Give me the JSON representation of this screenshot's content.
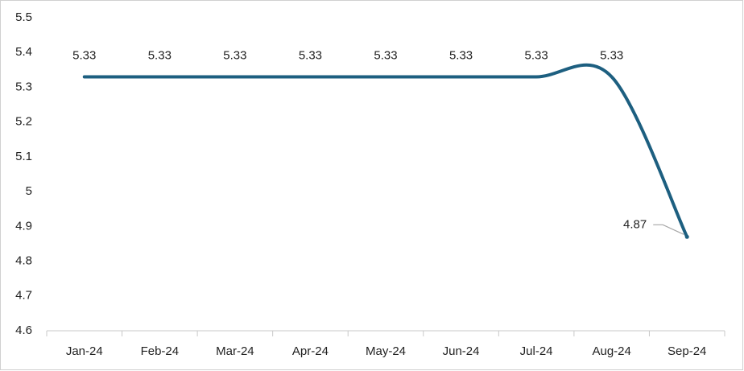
{
  "chart_data": {
    "type": "line",
    "categories": [
      "Jan-24",
      "Feb-24",
      "Mar-24",
      "Apr-24",
      "May-24",
      "Jun-24",
      "Jul-24",
      "Aug-24",
      "Sep-24"
    ],
    "values": [
      5.33,
      5.33,
      5.33,
      5.33,
      5.33,
      5.33,
      5.33,
      5.33,
      4.87
    ],
    "color": "#1d5f80",
    "smooth": true,
    "ylim": [
      4.6,
      5.5
    ],
    "yticks": [
      4.6,
      4.7,
      4.8,
      4.9,
      5,
      5.1,
      5.2,
      5.3,
      5.4,
      5.5
    ]
  }
}
